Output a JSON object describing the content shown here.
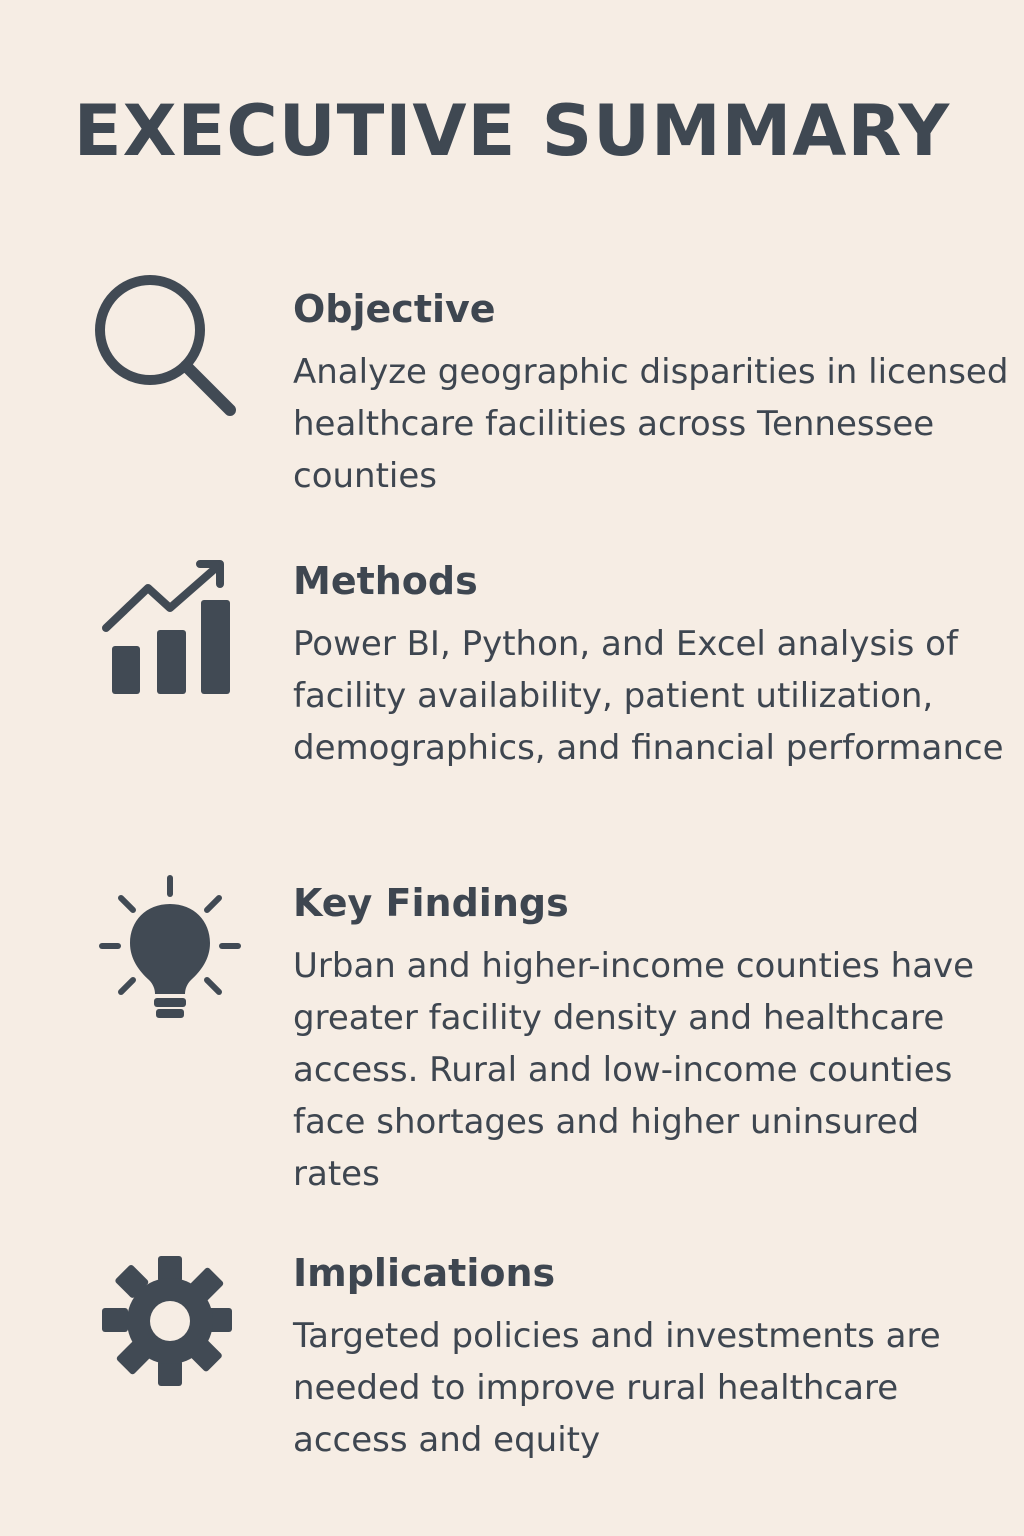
{
  "title": "EXECUTIVE SUMMARY",
  "sections": [
    {
      "heading": "Objective",
      "body": "Analyze geographic disparities in licensed healthcare facilities across Tennessee counties",
      "icon": "search-icon"
    },
    {
      "heading": "Methods",
      "body": "Power BI, Python, and Excel analysis of facility availability, patient utilization, demographics, and financial performance",
      "icon": "chart-growth-icon"
    },
    {
      "heading": "Key Findings",
      "body": "Urban and higher-income counties have greater facility density and healthcare access. Rural and low-income counties face shortages and higher uninsured rates",
      "icon": "lightbulb-icon"
    },
    {
      "heading": "Implications",
      "body": "Targeted policies and investments are needed to improve rural healthcare access and equity",
      "icon": "gear-icon"
    }
  ],
  "colors": {
    "background": "#f6ede4",
    "text": "#3e4650",
    "icon": "#414a54"
  }
}
